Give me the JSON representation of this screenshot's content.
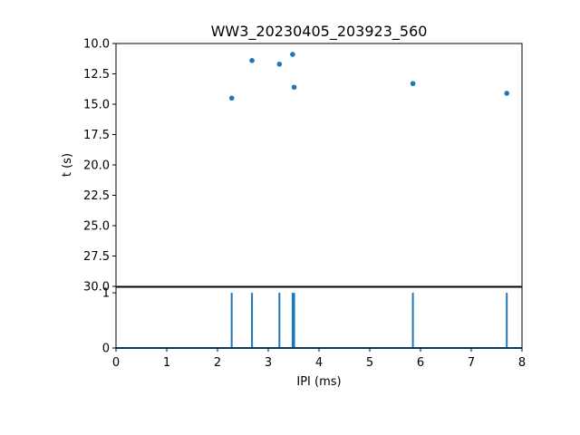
{
  "chart_data": [
    {
      "type": "scatter",
      "title": "WW3_20230405_203923_560",
      "xlabel": "",
      "ylabel": "t (s)",
      "xlim": [
        0,
        8
      ],
      "ylim": [
        10.0,
        30.0
      ],
      "y_inverted": true,
      "yticks": [
        "10.0",
        "12.5",
        "15.0",
        "17.5",
        "20.0",
        "22.5",
        "25.0",
        "27.5",
        "30.0"
      ],
      "ytick_values": [
        10.0,
        12.5,
        15.0,
        17.5,
        20.0,
        22.5,
        25.0,
        27.5,
        30.0
      ],
      "grid": false,
      "color": "#1f77b4",
      "points": [
        {
          "x": 2.28,
          "y": 14.5
        },
        {
          "x": 2.68,
          "y": 11.4
        },
        {
          "x": 3.22,
          "y": 11.7
        },
        {
          "x": 3.48,
          "y": 10.9
        },
        {
          "x": 3.51,
          "y": 13.6
        },
        {
          "x": 5.85,
          "y": 13.3
        },
        {
          "x": 7.7,
          "y": 14.1
        }
      ]
    },
    {
      "type": "line",
      "xlabel": "IPI (ms)",
      "ylabel": "",
      "xlim": [
        0,
        8
      ],
      "ylim": [
        0,
        1.1
      ],
      "xticks": [
        "0",
        "1",
        "2",
        "3",
        "4",
        "5",
        "6",
        "7",
        "8"
      ],
      "xtick_values": [
        0,
        1,
        2,
        3,
        4,
        5,
        6,
        7,
        8
      ],
      "yticks": [
        "0",
        "1"
      ],
      "ytick_values": [
        0,
        1
      ],
      "grid": false,
      "color": "#1f77b4",
      "spikes": [
        2.28,
        2.68,
        3.22,
        3.48,
        3.51,
        5.85,
        7.7
      ]
    }
  ]
}
